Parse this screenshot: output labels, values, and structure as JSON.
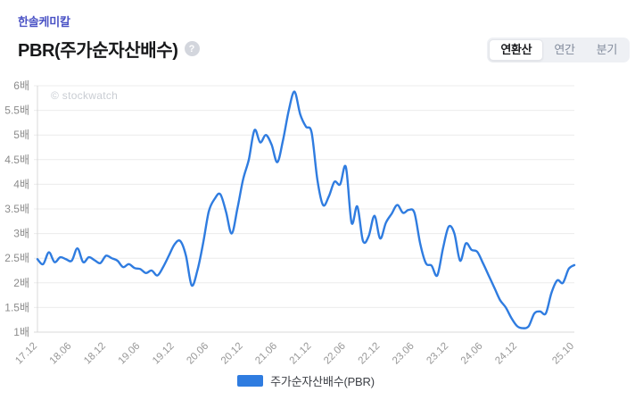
{
  "header": {
    "ticker": "한솔케미칼",
    "title": "PBR(주가순자산배수)",
    "help_icon": "?",
    "period_tabs": [
      {
        "label": "연환산",
        "active": true
      },
      {
        "label": "연간",
        "active": false
      },
      {
        "label": "분기",
        "active": false
      }
    ]
  },
  "legend": {
    "label": "주가순자산배수(PBR)",
    "color": "#2f7ce0"
  },
  "colors": {
    "ticker": "#4a52c5",
    "line": "#2f7ce0",
    "grid": "#ececec",
    "axis": "#d8d8d8",
    "tick_text": "#8b8b8b",
    "watermark_text": "#c9cdd3",
    "seg_bg": "#eef0f4"
  },
  "chart_data": {
    "type": "line",
    "series_name": "주가순자산배수(PBR)",
    "watermark": "© stockwatch",
    "y_unit": "배",
    "ylim": [
      1,
      6
    ],
    "y_tick_step": 0.5,
    "grid": true,
    "legend_position": "bottom-center",
    "x_tick_indices": [
      0,
      6,
      12,
      18,
      24,
      30,
      36,
      42,
      48,
      54,
      60,
      66,
      72,
      78,
      84,
      94
    ],
    "x": [
      "17.12",
      "18.01",
      "18.02",
      "18.03",
      "18.04",
      "18.05",
      "18.06",
      "18.07",
      "18.08",
      "18.09",
      "18.10",
      "18.11",
      "18.12",
      "19.01",
      "19.02",
      "19.03",
      "19.04",
      "19.05",
      "19.06",
      "19.07",
      "19.08",
      "19.09",
      "19.10",
      "19.11",
      "19.12",
      "20.01",
      "20.02",
      "20.03",
      "20.04",
      "20.05",
      "20.06",
      "20.07",
      "20.08",
      "20.09",
      "20.10",
      "20.11",
      "20.12",
      "21.01",
      "21.02",
      "21.03",
      "21.04",
      "21.05",
      "21.06",
      "21.07",
      "21.08",
      "21.09",
      "21.10",
      "21.11",
      "21.12",
      "22.01",
      "22.02",
      "22.03",
      "22.04",
      "22.05",
      "22.06",
      "22.07",
      "22.08",
      "22.09",
      "22.10",
      "22.11",
      "22.12",
      "23.01",
      "23.02",
      "23.03",
      "23.04",
      "23.05",
      "23.06",
      "23.07",
      "23.08",
      "23.09",
      "23.10",
      "23.11",
      "23.12",
      "24.01",
      "24.02",
      "24.03",
      "24.04",
      "24.05",
      "24.06",
      "24.07",
      "24.08",
      "24.09",
      "24.10",
      "24.11",
      "24.12",
      "25.01",
      "25.02",
      "25.03",
      "25.04",
      "25.05",
      "25.06",
      "25.07",
      "25.08",
      "25.09",
      "25.10"
    ],
    "values": [
      2.48,
      2.38,
      2.62,
      2.42,
      2.52,
      2.48,
      2.45,
      2.7,
      2.42,
      2.52,
      2.46,
      2.4,
      2.55,
      2.5,
      2.45,
      2.32,
      2.38,
      2.3,
      2.28,
      2.2,
      2.25,
      2.15,
      2.32,
      2.55,
      2.78,
      2.85,
      2.55,
      1.95,
      2.25,
      2.8,
      3.45,
      3.7,
      3.8,
      3.45,
      3.0,
      3.5,
      4.1,
      4.5,
      5.1,
      4.85,
      5.0,
      4.8,
      4.45,
      4.9,
      5.5,
      5.88,
      5.42,
      5.17,
      5.05,
      4.1,
      3.58,
      3.75,
      4.05,
      4.0,
      4.35,
      3.22,
      3.55,
      2.85,
      2.95,
      3.36,
      2.9,
      3.22,
      3.4,
      3.58,
      3.42,
      3.48,
      3.42,
      2.8,
      2.4,
      2.35,
      2.15,
      2.7,
      3.14,
      3.0,
      2.45,
      2.8,
      2.67,
      2.63,
      2.4,
      2.15,
      1.9,
      1.65,
      1.5,
      1.28,
      1.12,
      1.08,
      1.12,
      1.38,
      1.42,
      1.38,
      1.8,
      2.05,
      2.0,
      2.28,
      2.36
    ]
  }
}
